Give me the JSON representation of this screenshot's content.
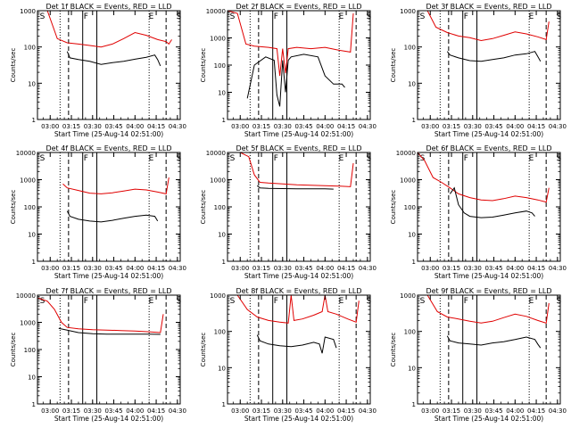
{
  "chart_data": [
    {
      "type": "line",
      "title": "Det 1f BLACK = Events, RED = LLD",
      "xlabel": "Start Time (25-Aug-14 02:51:00)",
      "ylabel": "Counts/sec",
      "yscale": "log",
      "ylim": [
        1,
        1000
      ],
      "y_ticks": [
        "1",
        "10",
        "100",
        "1000"
      ],
      "x_ticks": [
        "03:00",
        "03:15",
        "03:30",
        "03:45",
        "04:00",
        "04:15",
        "04:30"
      ],
      "markers": [
        {
          "label": "S"
        },
        {
          "label": "F"
        },
        {
          "label": "E"
        },
        {
          "label": "S"
        }
      ],
      "series": [
        {
          "name": "RED",
          "color": "#e00000",
          "x": [
            "02:51",
            "02:58",
            "03:05",
            "03:12",
            "03:20",
            "03:28",
            "03:36",
            "03:44",
            "03:52",
            "04:00",
            "04:08",
            "04:16",
            "04:22",
            "04:24",
            "04:26"
          ],
          "values": [
            1000,
            1000,
            170,
            130,
            120,
            110,
            100,
            120,
            170,
            250,
            210,
            160,
            140,
            120,
            160
          ]
        },
        {
          "name": "BLACK",
          "color": "#000000",
          "x": [
            "03:12",
            "03:14",
            "03:20",
            "03:28",
            "03:36",
            "03:44",
            "03:52",
            "04:00",
            "04:08",
            "04:14",
            "04:16",
            "04:18"
          ],
          "values": [
            75,
            50,
            45,
            40,
            33,
            37,
            40,
            46,
            52,
            60,
            45,
            30
          ]
        }
      ]
    },
    {
      "type": "line",
      "title": "Det 2f BLACK = Events, RED = LLD",
      "xlabel": "Start Time (25-Aug-14 02:51:00)",
      "ylabel": "Counts/sec",
      "yscale": "log",
      "ylim": [
        1,
        10000
      ],
      "y_ticks": [
        "1",
        "10",
        "100",
        "1000",
        "10000"
      ],
      "x_ticks": [
        "03:00",
        "03:15",
        "03:30",
        "03:45",
        "04:00",
        "04:15",
        "04:30"
      ],
      "markers": [
        {
          "label": "S"
        },
        {
          "label": "F"
        },
        {
          "label": "E"
        },
        {
          "label": "S"
        }
      ],
      "series": [
        {
          "name": "RED",
          "color": "#e00000",
          "x": [
            "02:51",
            "02:58",
            "03:04",
            "03:10",
            "03:20",
            "03:26",
            "03:28",
            "03:30",
            "03:32",
            "03:34",
            "03:40",
            "03:50",
            "04:00",
            "04:10",
            "04:18",
            "04:20"
          ],
          "values": [
            10000,
            8000,
            600,
            500,
            450,
            400,
            40,
            400,
            50,
            400,
            450,
            400,
            450,
            350,
            300,
            8000
          ]
        },
        {
          "name": "BLACK",
          "color": "#000000",
          "x": [
            "03:05",
            "03:10",
            "03:18",
            "03:24",
            "03:26",
            "03:28",
            "03:30",
            "03:32",
            "03:34",
            "03:36",
            "03:45",
            "03:55",
            "04:00",
            "04:06",
            "04:12",
            "04:14"
          ],
          "values": [
            6,
            100,
            200,
            150,
            8,
            3,
            150,
            10,
            150,
            200,
            250,
            200,
            40,
            20,
            20,
            15
          ]
        }
      ]
    },
    {
      "type": "line",
      "title": "Det 3f BLACK = Events, RED = LLD",
      "xlabel": "Start Time (25-Aug-14 02:51:00)",
      "ylabel": "Counts/sec",
      "yscale": "log",
      "ylim": [
        1,
        1000
      ],
      "y_ticks": [
        "1",
        "10",
        "100",
        "1000"
      ],
      "x_ticks": [
        "03:00",
        "03:15",
        "03:30",
        "03:45",
        "04:00",
        "04:15",
        "04:30"
      ],
      "markers": [
        {
          "label": "S"
        },
        {
          "label": "F"
        },
        {
          "label": "E"
        },
        {
          "label": "S"
        }
      ],
      "series": [
        {
          "name": "RED",
          "color": "#e00000",
          "x": [
            "02:51",
            "02:58",
            "03:04",
            "03:12",
            "03:20",
            "03:28",
            "03:36",
            "03:44",
            "03:52",
            "04:00",
            "04:08",
            "04:16",
            "04:22",
            "04:24"
          ],
          "values": [
            1000,
            1000,
            350,
            250,
            200,
            180,
            150,
            170,
            210,
            260,
            230,
            190,
            160,
            500
          ]
        },
        {
          "name": "BLACK",
          "color": "#000000",
          "x": [
            "03:12",
            "03:14",
            "03:20",
            "03:28",
            "03:36",
            "03:44",
            "03:52",
            "04:00",
            "04:08",
            "04:14",
            "04:16",
            "04:18"
          ],
          "values": [
            75,
            60,
            50,
            42,
            40,
            45,
            50,
            60,
            65,
            75,
            55,
            40
          ]
        }
      ]
    },
    {
      "type": "line",
      "title": "Det 4f BLACK = Events, RED = LLD",
      "xlabel": "Start Time (25-Aug-14 02:51:00)",
      "ylabel": "Counts/sec",
      "yscale": "log",
      "ylim": [
        1,
        10000
      ],
      "y_ticks": [
        "1",
        "10",
        "100",
        "1000",
        "10000"
      ],
      "x_ticks": [
        "03:00",
        "03:15",
        "03:30",
        "03:45",
        "04:00",
        "04:15",
        "04:30"
      ],
      "markers": [
        {
          "label": "S"
        },
        {
          "label": "F"
        },
        {
          "label": "E"
        },
        {
          "label": "S"
        }
      ],
      "series": [
        {
          "name": "RED",
          "color": "#e00000",
          "x": [
            "03:09",
            "03:12",
            "03:20",
            "03:28",
            "03:36",
            "03:44",
            "03:52",
            "04:00",
            "04:08",
            "04:16",
            "04:22",
            "04:24"
          ],
          "values": [
            700,
            500,
            400,
            320,
            300,
            330,
            380,
            450,
            420,
            350,
            300,
            1200
          ]
        },
        {
          "name": "BLACK",
          "color": "#000000",
          "x": [
            "03:12",
            "03:14",
            "03:20",
            "03:28",
            "03:36",
            "03:44",
            "03:52",
            "04:00",
            "04:08",
            "04:14",
            "04:16"
          ],
          "values": [
            70,
            45,
            35,
            30,
            28,
            32,
            38,
            45,
            50,
            45,
            30
          ]
        }
      ]
    },
    {
      "type": "line",
      "title": "Det 5f BLACK = Events, RED = LLD",
      "xlabel": "Start Time (25-Aug-14 02:51:00)",
      "ylabel": "Counts/sec",
      "yscale": "log",
      "ylim": [
        1,
        10000
      ],
      "y_ticks": [
        "1",
        "10",
        "100",
        "1000",
        "10000"
      ],
      "x_ticks": [
        "03:00",
        "03:15",
        "03:30",
        "03:45",
        "04:00",
        "04:15",
        "04:30"
      ],
      "markers": [
        {
          "label": "S"
        },
        {
          "label": "F"
        },
        {
          "label": "E"
        },
        {
          "label": "S"
        }
      ],
      "series": [
        {
          "name": "RED",
          "color": "#e00000",
          "x": [
            "02:51",
            "03:00",
            "03:06",
            "03:10",
            "03:14",
            "03:20",
            "03:30",
            "03:40",
            "03:50",
            "04:00",
            "04:10",
            "04:18",
            "04:20"
          ],
          "values": [
            10000,
            10000,
            7000,
            1500,
            800,
            750,
            700,
            650,
            620,
            600,
            580,
            550,
            4000
          ]
        },
        {
          "name": "BLACK",
          "color": "#000000",
          "x": [
            "03:12",
            "03:14",
            "03:20",
            "03:30",
            "03:40",
            "03:50",
            "04:00",
            "04:06"
          ],
          "values": [
            600,
            500,
            480,
            470,
            460,
            460,
            460,
            450
          ]
        }
      ]
    },
    {
      "type": "line",
      "title": "Det 6f BLACK = Events, RED = LLD",
      "xlabel": "Start Time (25-Aug-14 02:51:00)",
      "ylabel": "Counts/sec",
      "yscale": "log",
      "ylim": [
        1,
        10000
      ],
      "y_ticks": [
        "1",
        "10",
        "100",
        "1000",
        "10000"
      ],
      "x_ticks": [
        "03:00",
        "03:15",
        "03:30",
        "03:45",
        "04:00",
        "04:15",
        "04:30"
      ],
      "markers": [
        {
          "label": "S"
        },
        {
          "label": "F"
        },
        {
          "label": "E"
        },
        {
          "label": "S"
        }
      ],
      "series": [
        {
          "name": "RED",
          "color": "#e00000",
          "x": [
            "02:51",
            "02:56",
            "03:02",
            "03:08",
            "03:14",
            "03:20",
            "03:28",
            "03:36",
            "03:44",
            "03:52",
            "04:00",
            "04:08",
            "04:16",
            "04:22",
            "04:24"
          ],
          "values": [
            10000,
            5000,
            1200,
            800,
            500,
            300,
            220,
            180,
            170,
            200,
            250,
            220,
            180,
            150,
            500
          ]
        },
        {
          "name": "BLACK",
          "color": "#000000",
          "x": [
            "03:14",
            "03:17",
            "03:20",
            "03:24",
            "03:28",
            "03:36",
            "03:44",
            "03:52",
            "04:00",
            "04:08",
            "04:12",
            "04:14"
          ],
          "values": [
            300,
            500,
            120,
            60,
            45,
            40,
            42,
            50,
            60,
            70,
            60,
            45
          ]
        }
      ]
    },
    {
      "type": "line",
      "title": "Det 7f BLACK = Events, RED = LLD",
      "xlabel": "Start Time (25-Aug-14 02:51:00)",
      "ylabel": "Counts/sec",
      "yscale": "log",
      "ylim": [
        1,
        10000
      ],
      "y_ticks": [
        "1",
        "10",
        "100",
        "1000",
        "10000"
      ],
      "x_ticks": [
        "03:00",
        "03:15",
        "03:30",
        "03:45",
        "04:00",
        "04:15",
        "04:30"
      ],
      "markers": [
        {
          "label": "S"
        },
        {
          "label": "F"
        },
        {
          "label": "E"
        },
        {
          "label": "S"
        }
      ],
      "series": [
        {
          "name": "RED",
          "color": "#e00000",
          "x": [
            "02:51",
            "02:58",
            "03:03",
            "03:08",
            "03:12",
            "03:20",
            "03:30",
            "03:40",
            "03:50",
            "04:00",
            "04:10",
            "04:18",
            "04:20"
          ],
          "values": [
            8000,
            6000,
            3000,
            1000,
            650,
            580,
            540,
            520,
            500,
            480,
            450,
            420,
            2000
          ]
        },
        {
          "name": "BLACK",
          "color": "#000000",
          "x": [
            "03:06",
            "03:12",
            "03:20",
            "03:30",
            "03:40",
            "03:50",
            "04:00",
            "04:10",
            "04:18"
          ],
          "values": [
            600,
            520,
            420,
            380,
            370,
            370,
            370,
            370,
            360
          ]
        }
      ]
    },
    {
      "type": "line",
      "title": "Det 8f BLACK = Events, RED = LLD",
      "xlabel": "Start Time (25-Aug-14 02:51:00)",
      "ylabel": "Counts/sec",
      "yscale": "log",
      "ylim": [
        1,
        1000
      ],
      "y_ticks": [
        "1",
        "10",
        "100",
        "1000"
      ],
      "x_ticks": [
        "03:00",
        "03:15",
        "03:30",
        "03:45",
        "04:00",
        "04:15",
        "04:30"
      ],
      "markers": [
        {
          "label": "S"
        },
        {
          "label": "F"
        },
        {
          "label": "E"
        },
        {
          "label": "S"
        }
      ],
      "series": [
        {
          "name": "RED",
          "color": "#e00000",
          "x": [
            "02:51",
            "02:58",
            "03:05",
            "03:12",
            "03:20",
            "03:28",
            "03:34",
            "03:36",
            "03:38",
            "03:44",
            "03:52",
            "03:58",
            "04:00",
            "04:02",
            "04:08",
            "04:16",
            "04:22",
            "04:24"
          ],
          "values": [
            1000,
            1000,
            400,
            250,
            200,
            180,
            170,
            1000,
            200,
            220,
            280,
            350,
            1000,
            350,
            300,
            220,
            180,
            700
          ]
        },
        {
          "name": "BLACK",
          "color": "#000000",
          "x": [
            "03:12",
            "03:14",
            "03:20",
            "03:28",
            "03:36",
            "03:44",
            "03:52",
            "03:56",
            "03:58",
            "04:00",
            "04:06",
            "04:08"
          ],
          "values": [
            80,
            55,
            45,
            40,
            38,
            42,
            50,
            45,
            25,
            70,
            60,
            35
          ]
        }
      ]
    },
    {
      "type": "line",
      "title": "Det 9f BLACK = Events, RED = LLD",
      "xlabel": "Start Time (25-Aug-14 02:51:00)",
      "ylabel": "Counts/sec",
      "yscale": "log",
      "ylim": [
        1,
        1000
      ],
      "y_ticks": [
        "1",
        "10",
        "100",
        "1000"
      ],
      "x_ticks": [
        "03:00",
        "03:15",
        "03:30",
        "03:45",
        "04:00",
        "04:15",
        "04:30"
      ],
      "markers": [
        {
          "label": "S"
        },
        {
          "label": "F"
        },
        {
          "label": "E"
        },
        {
          "label": "S"
        }
      ],
      "series": [
        {
          "name": "RED",
          "color": "#e00000",
          "x": [
            "02:51",
            "02:58",
            "03:05",
            "03:12",
            "03:20",
            "03:28",
            "03:36",
            "03:44",
            "03:52",
            "04:00",
            "04:08",
            "04:16",
            "04:22",
            "04:24"
          ],
          "values": [
            1000,
            1000,
            350,
            250,
            220,
            190,
            170,
            190,
            240,
            300,
            260,
            200,
            170,
            600
          ]
        },
        {
          "name": "BLACK",
          "color": "#000000",
          "x": [
            "03:12",
            "03:14",
            "03:20",
            "03:28",
            "03:36",
            "03:44",
            "03:52",
            "04:00",
            "04:08",
            "04:14",
            "04:16",
            "04:18"
          ],
          "values": [
            75,
            55,
            48,
            45,
            42,
            48,
            52,
            60,
            70,
            60,
            45,
            35
          ]
        }
      ]
    }
  ]
}
